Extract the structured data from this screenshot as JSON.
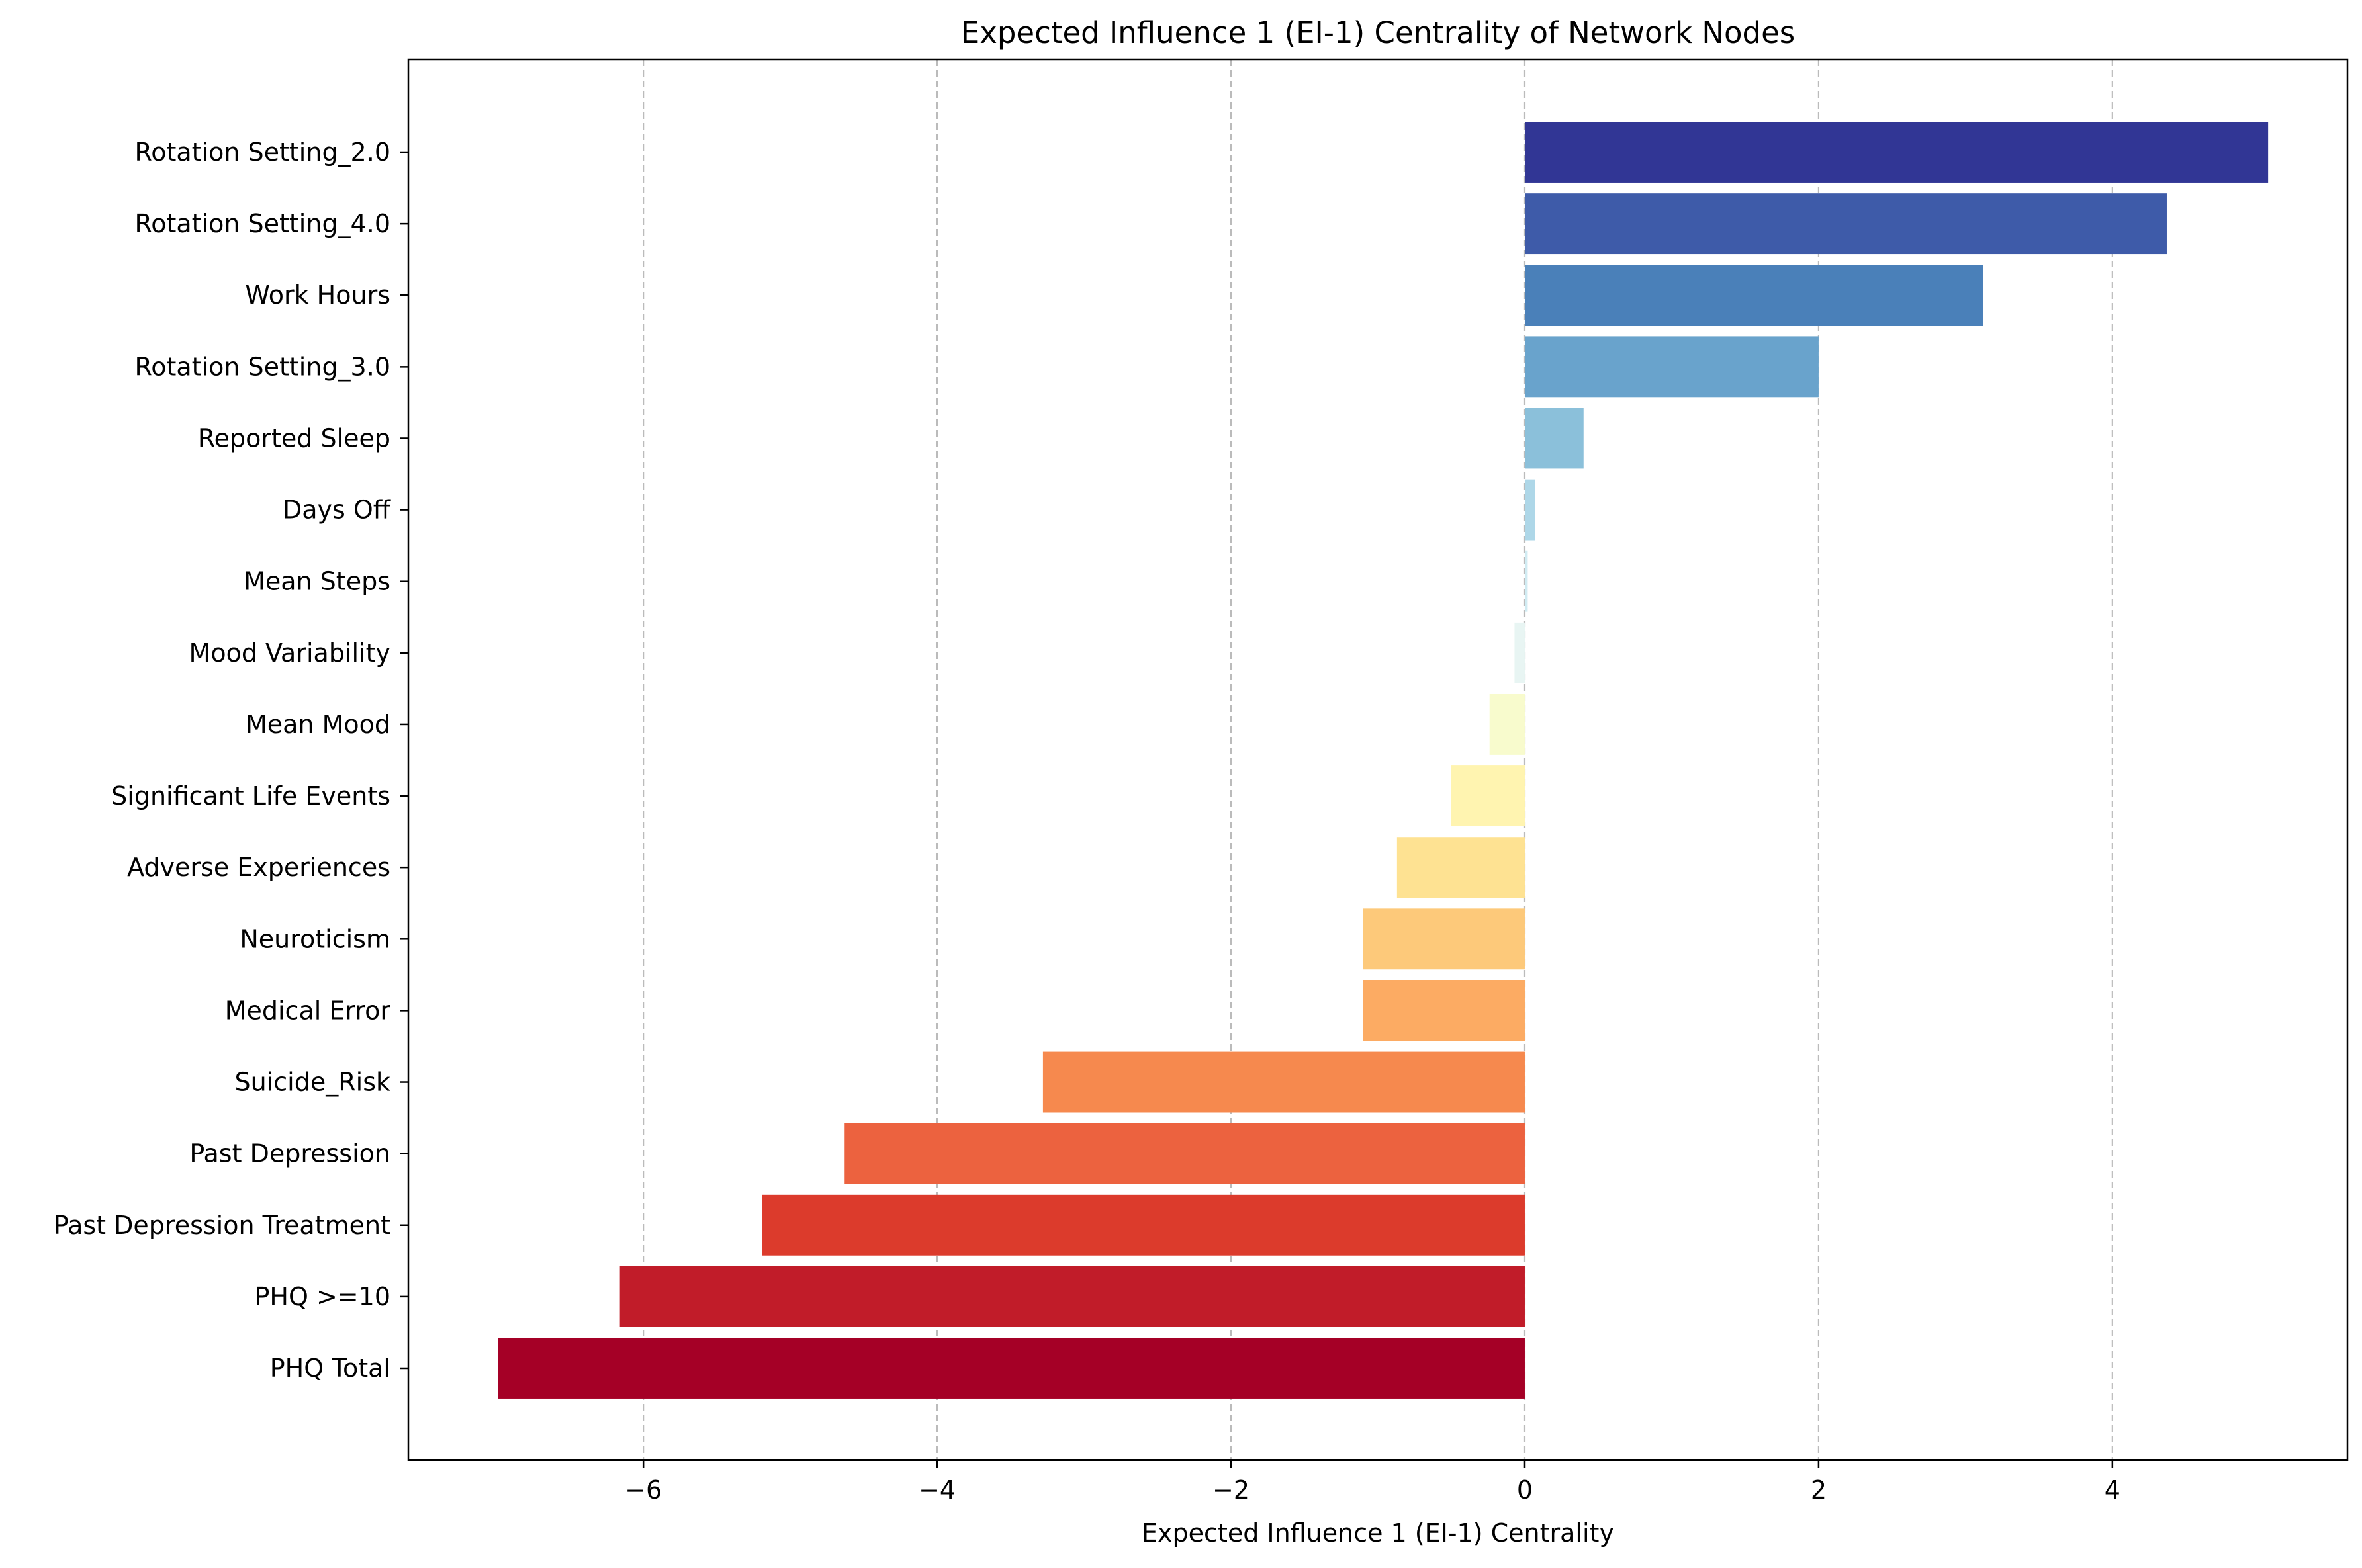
{
  "chart_data": {
    "type": "bar",
    "orientation": "horizontal",
    "title": "Expected Influence 1 (EI-1) Centrality of Network Nodes",
    "xlabel": "Expected Influence 1 (EI-1) Centrality",
    "ylabel": "",
    "xlim": [
      -7.6,
      5.6
    ],
    "xticks": [
      -6,
      -4,
      -2,
      0,
      2,
      4
    ],
    "xtick_labels": [
      "−6",
      "−4",
      "−2",
      "0",
      "2",
      "4"
    ],
    "grid": "x-axis, dashed",
    "categories": [
      "Rotation Setting_2.0",
      "Rotation Setting_4.0",
      "Work Hours",
      "Rotation Setting_3.0",
      "Reported Sleep",
      "Days Off",
      "Mean Steps",
      "Mood Variability",
      "Mean Mood",
      "Significant Life Events",
      "Adverse Experiences",
      "Neuroticism",
      "Medical Error",
      "Suicide_Risk",
      "Past Depression",
      "Past Depression Treatment",
      "PHQ >=10",
      "PHQ Total"
    ],
    "values": [
      5.06,
      4.37,
      3.12,
      2.0,
      0.4,
      0.07,
      0.02,
      -0.07,
      -0.24,
      -0.5,
      -0.87,
      -1.1,
      -1.1,
      -3.28,
      -4.63,
      -5.19,
      -6.16,
      -6.99
    ],
    "colors": [
      "#313695",
      "#3e5ba9",
      "#4a80b9",
      "#69a3cc",
      "#8bc0da",
      "#aed7e8",
      "#d0ebf2",
      "#e8f5f3",
      "#f8fbcd",
      "#fff4b0",
      "#fee292",
      "#fdc97a",
      "#fcab63",
      "#f6894e",
      "#ec623f",
      "#dc3b2c",
      "#c11c29",
      "#a50026"
    ]
  }
}
